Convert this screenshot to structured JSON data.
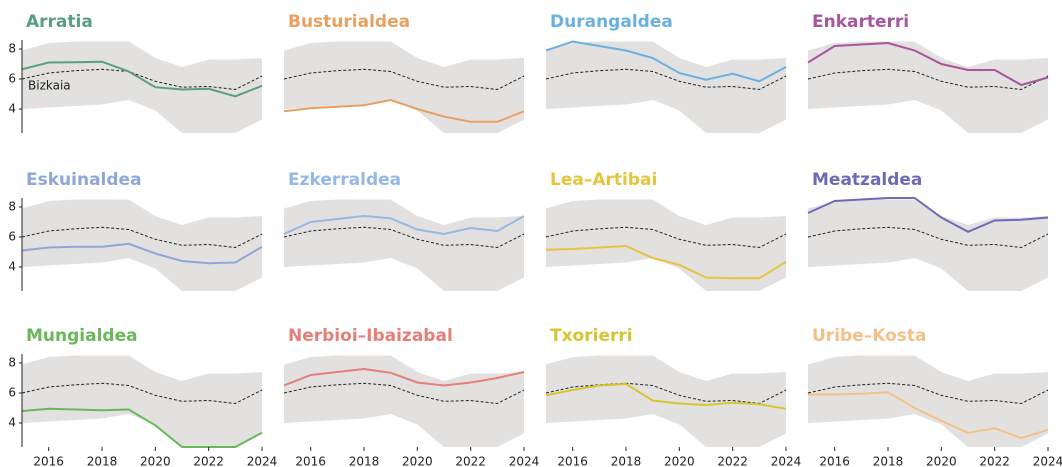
{
  "chart_data": {
    "type": "line",
    "x": [
      2015,
      2016,
      2017,
      2018,
      2019,
      2020,
      2021,
      2022,
      2023,
      2024
    ],
    "xlim": [
      2015,
      2024
    ],
    "xticks": [
      2016,
      2018,
      2020,
      2022,
      2024
    ],
    "ylim": [
      2.4,
      8.6
    ],
    "yticks": [
      4,
      6,
      8
    ],
    "band": {
      "color": "#e2e1e0",
      "upper": [
        7.9,
        8.4,
        8.5,
        8.5,
        8.5,
        7.4,
        6.8,
        7.3,
        7.3,
        7.4
      ],
      "lower": [
        4.0,
        4.1,
        4.2,
        4.3,
        4.6,
        3.9,
        2.4,
        2.4,
        2.4,
        3.3
      ]
    },
    "reference": {
      "name": "Bizkaia",
      "color": "#222222",
      "values": [
        6.0,
        6.4,
        6.55,
        6.65,
        6.5,
        5.85,
        5.45,
        5.5,
        5.3,
        6.2
      ]
    },
    "series": [
      {
        "name": "Arratia",
        "color": "#5a9e82",
        "values": [
          6.65,
          7.1,
          7.12,
          7.15,
          6.5,
          5.45,
          5.3,
          5.35,
          4.85,
          5.55
        ]
      },
      {
        "name": "Busturialdea",
        "color": "#e8a060",
        "values": [
          3.85,
          4.05,
          4.15,
          4.25,
          4.6,
          4.0,
          3.5,
          3.15,
          3.15,
          3.85
        ]
      },
      {
        "name": "Durangaldea",
        "color": "#6ab0e0",
        "values": [
          7.9,
          8.5,
          8.2,
          7.9,
          7.4,
          6.4,
          5.95,
          6.35,
          5.85,
          6.8
        ]
      },
      {
        "name": "Enkarterri",
        "color": "#a8559e",
        "values": [
          7.1,
          8.2,
          8.3,
          8.4,
          7.9,
          7.0,
          6.6,
          6.6,
          5.6,
          6.1
        ]
      },
      {
        "name": "Eskuinaldea",
        "color": "#8fa6d8",
        "values": [
          5.1,
          5.3,
          5.35,
          5.35,
          5.55,
          4.9,
          4.4,
          4.25,
          4.3,
          5.35
        ]
      },
      {
        "name": "Ezkerraldea",
        "color": "#96b8e6",
        "values": [
          6.2,
          7.0,
          7.2,
          7.4,
          7.25,
          6.5,
          6.2,
          6.6,
          6.4,
          7.4
        ]
      },
      {
        "name": "Lea–Artibai",
        "color": "#e6c440",
        "values": [
          5.15,
          5.2,
          5.3,
          5.4,
          4.6,
          4.15,
          3.3,
          3.25,
          3.25,
          4.35
        ]
      },
      {
        "name": "Meatzaldea",
        "color": "#6f6ab8",
        "values": [
          7.6,
          8.4,
          8.5,
          8.6,
          8.6,
          7.3,
          6.35,
          7.1,
          7.15,
          7.3
        ]
      },
      {
        "name": "Mungialdea",
        "color": "#6ab85a",
        "values": [
          4.8,
          4.95,
          4.9,
          4.85,
          4.9,
          3.85,
          2.4,
          2.4,
          2.4,
          3.35
        ]
      },
      {
        "name": "Nerbioi–Ibaizabal",
        "color": "#e57f78",
        "values": [
          6.5,
          7.2,
          7.4,
          7.6,
          7.35,
          6.7,
          6.5,
          6.7,
          7.0,
          7.4
        ]
      },
      {
        "name": "Txorierri",
        "color": "#d8c430",
        "values": [
          5.85,
          6.2,
          6.5,
          6.6,
          5.5,
          5.3,
          5.2,
          5.35,
          5.25,
          4.95
        ]
      },
      {
        "name": "Uribe–Kosta",
        "color": "#f5c088",
        "values": [
          5.9,
          5.9,
          5.95,
          6.05,
          5.0,
          4.15,
          3.35,
          3.65,
          3.0,
          3.55
        ]
      }
    ]
  }
}
